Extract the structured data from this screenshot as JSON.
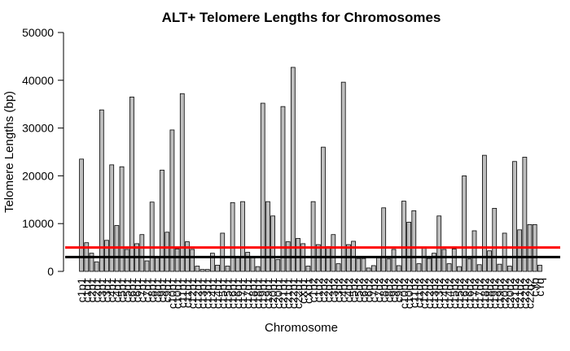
{
  "chart_data": {
    "type": "bar",
    "title": "ALT+ Telomere Lengths for Chromosomes",
    "xlabel": "Chromosome",
    "ylabel": "Telomere Lengths (bp)",
    "ylim": [
      0,
      50000
    ],
    "yticks": [
      0,
      10000,
      20000,
      30000,
      40000,
      50000
    ],
    "grid": false,
    "categories": [
      "c1p1",
      "c1q1",
      "c2p1",
      "c2q1",
      "c3p1",
      "c3q1",
      "c4p1",
      "c4q1",
      "c5p1",
      "c5q1",
      "c6p1",
      "c6q1",
      "c7p1",
      "c7q1",
      "c8p1",
      "c8q1",
      "c9p1",
      "c9q1",
      "c10p1",
      "c10q1",
      "c11p1",
      "c11q1",
      "c12p1",
      "c12q1",
      "c13p1",
      "c13q1",
      "c14p1",
      "c14q1",
      "c15p1",
      "c15q1",
      "c16p1",
      "c16q1",
      "c17p1",
      "c17q1",
      "c18p1",
      "c18q1",
      "c19p1",
      "c19q1",
      "c20p1",
      "c20q1",
      "c21p1",
      "c21q1",
      "c22p1",
      "c22q1",
      "cXp1",
      "cXq1",
      "c1p2",
      "c1q2",
      "c2p2",
      "c2q2",
      "c3p2",
      "c3q2",
      "c4p2",
      "c4q2",
      "c5p2",
      "c5q2",
      "c6p2",
      "c6q2",
      "c7p2",
      "c7q2",
      "c8p2",
      "c8q2",
      "c9p2",
      "c9q2",
      "c10p2",
      "c10q2",
      "c11p2",
      "c11q2",
      "c12p2",
      "c12q2",
      "c13p2",
      "c13q2",
      "c14p2",
      "c14q2",
      "c15p2",
      "c15q2",
      "c16p2",
      "c16q2",
      "c17p2",
      "c17q2",
      "c18p2",
      "c18q2",
      "c19p2",
      "c19q2",
      "c20p2",
      "c20q2",
      "c21p2",
      "c21q2",
      "c22p2",
      "c22q2",
      "cYp",
      "cYq"
    ],
    "values": [
      23500,
      6000,
      3800,
      2000,
      33800,
      6500,
      22300,
      9600,
      21900,
      4600,
      36500,
      5800,
      7700,
      2200,
      14500,
      2800,
      21200,
      8200,
      29600,
      4700,
      37200,
      6200,
      4600,
      1100,
      400,
      400,
      3800,
      1300,
      8000,
      1100,
      14400,
      3000,
      14600,
      4000,
      3100,
      1000,
      35200,
      14600,
      11600,
      2500,
      34500,
      6200,
      42700,
      6900,
      5800,
      1100,
      14600,
      5600,
      26000,
      5200,
      7700,
      1600,
      39600,
      5600,
      6300,
      2700,
      2700,
      700,
      1200,
      3000,
      13300,
      2600,
      4600,
      1200,
      14700,
      10300,
      12700,
      1600,
      4900,
      2700,
      3800,
      11600,
      4600,
      1600,
      4700,
      1000,
      20000,
      2600,
      8500,
      1400,
      24300,
      4300,
      13200,
      1500,
      8000,
      1100,
      23000,
      8700,
      23900,
      9800,
      9800,
      1300
    ],
    "reference_lines": [
      {
        "value": 3000,
        "color": "#000000"
      },
      {
        "value": 5000,
        "color": "#ff0000"
      }
    ],
    "bar_fill": "#bebebe",
    "bar_stroke": "#000000"
  }
}
